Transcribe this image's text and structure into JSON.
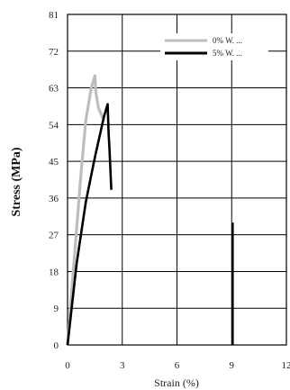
{
  "chart_data": {
    "type": "line",
    "title": "",
    "xlabel": "Strain (%)",
    "ylabel": "Stress (MPa)",
    "xlim": [
      0,
      12
    ],
    "ylim": [
      0,
      81
    ],
    "x_ticks": [
      "0",
      "3",
      "6",
      "9",
      "12"
    ],
    "y_ticks": [
      "0",
      "9",
      "18",
      "27",
      "36",
      "45",
      "54",
      "63",
      "72",
      "81"
    ],
    "grid": true,
    "legend": "top-right",
    "series": [
      {
        "name": "0% W. ...",
        "color": "#bdbdbd",
        "points": [
          [
            0,
            0
          ],
          [
            0.35,
            20
          ],
          [
            0.7,
            40
          ],
          [
            1.0,
            55
          ],
          [
            1.3,
            63
          ],
          [
            1.5,
            66
          ],
          [
            1.55,
            62
          ],
          [
            1.7,
            58
          ],
          [
            2.0,
            55
          ]
        ]
      },
      {
        "name": "5% W. ...",
        "color": "#000000",
        "points": [
          [
            0,
            0
          ],
          [
            0.5,
            20
          ],
          [
            1.0,
            35
          ],
          [
            1.5,
            46
          ],
          [
            2.0,
            56
          ],
          [
            2.2,
            59
          ],
          [
            2.25,
            52
          ],
          [
            2.3,
            48
          ],
          [
            2.4,
            38
          ]
        ]
      },
      {
        "name": "",
        "color": "#000000",
        "points": [
          [
            9.05,
            0
          ],
          [
            9.05,
            30
          ]
        ]
      }
    ]
  }
}
